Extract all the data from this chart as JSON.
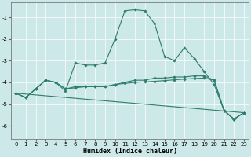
{
  "xlabel": "Humidex (Indice chaleur)",
  "background_color": "#cce8e8",
  "line_color": "#2e7d6e",
  "xlim": [
    -0.5,
    23.5
  ],
  "ylim": [
    -6.6,
    -0.3
  ],
  "yticks": [
    -6,
    -5,
    -4,
    -3,
    -2,
    -1
  ],
  "xticks": [
    0,
    1,
    2,
    3,
    4,
    5,
    6,
    7,
    8,
    9,
    10,
    11,
    12,
    13,
    14,
    15,
    16,
    17,
    18,
    19,
    20,
    21,
    22,
    23
  ],
  "series": [
    {
      "x": [
        0,
        1,
        2,
        3,
        4,
        5,
        6,
        7,
        8,
        9,
        10,
        11,
        12,
        13,
        14,
        15,
        16,
        17,
        18,
        19,
        20,
        21,
        22,
        23
      ],
      "y": [
        -4.5,
        -4.7,
        -4.3,
        -3.9,
        -4.0,
        -4.4,
        -3.1,
        -3.2,
        -3.2,
        -3.1,
        -2.0,
        -0.7,
        -0.65,
        -0.7,
        -1.3,
        -2.8,
        -3.0,
        -2.4,
        -2.9,
        -3.5,
        -4.1,
        -5.3,
        -5.7,
        -5.4
      ],
      "has_markers": true
    },
    {
      "x": [
        0,
        1,
        2,
        3,
        4,
        5,
        6,
        7,
        8,
        9,
        10,
        11,
        12,
        13,
        14,
        15,
        16,
        17,
        18,
        19,
        20,
        21,
        22,
        23
      ],
      "y": [
        -4.5,
        -4.7,
        -4.3,
        -3.9,
        -4.0,
        -4.3,
        -4.2,
        -4.2,
        -4.2,
        -4.2,
        -4.1,
        -4.0,
        -3.9,
        -3.9,
        -3.8,
        -3.8,
        -3.75,
        -3.75,
        -3.7,
        -3.7,
        -3.9,
        -5.3,
        -5.7,
        -5.4
      ],
      "has_markers": true
    },
    {
      "x": [
        0,
        1,
        2,
        3,
        4,
        5,
        6,
        7,
        8,
        9,
        10,
        11,
        12,
        13,
        14,
        15,
        16,
        17,
        18,
        19,
        20,
        21,
        22,
        23
      ],
      "y": [
        -4.5,
        -4.7,
        -4.3,
        -3.9,
        -4.0,
        -4.3,
        -4.25,
        -4.2,
        -4.2,
        -4.2,
        -4.1,
        -4.05,
        -4.0,
        -3.98,
        -3.95,
        -3.92,
        -3.88,
        -3.85,
        -3.82,
        -3.8,
        -3.9,
        -5.3,
        -5.7,
        -5.4
      ],
      "has_markers": true
    },
    {
      "x": [
        0,
        23
      ],
      "y": [
        -4.5,
        -5.4
      ],
      "has_markers": false
    }
  ],
  "xlabel_fontsize": 6,
  "tick_labelsize": 5,
  "grid_color": "#ffffff",
  "grid_linewidth": 0.5
}
